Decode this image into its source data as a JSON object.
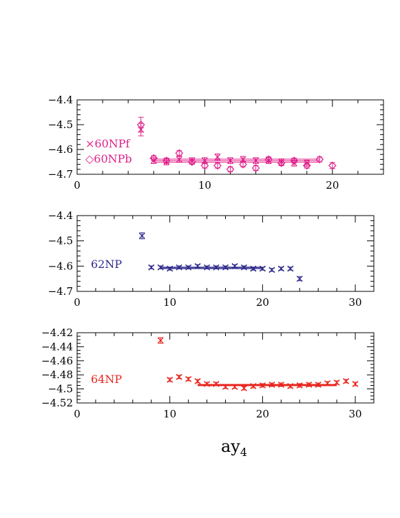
{
  "figure": {
    "xlabel_main": "ay",
    "xlabel_sub": "4"
  },
  "chart_data": [
    {
      "type": "scatter",
      "title": "",
      "xlabel": "",
      "ylabel": "",
      "xlim": [
        0,
        24
      ],
      "ylim": [
        -4.7,
        -4.4
      ],
      "xticks": [
        0,
        10,
        20
      ],
      "yticks": [
        -4.7,
        -4.6,
        -4.5,
        -4.4
      ],
      "ytick_labels": [
        "−4.7",
        "−4.6",
        "−4.5",
        "−4.4"
      ],
      "grid": false,
      "legend_position": "left",
      "series": [
        {
          "name": "60NPf",
          "marker_symbol": "×",
          "marker": "x",
          "color": "#e0208a",
          "x": [
            5,
            6,
            7,
            8,
            9,
            10,
            11,
            12,
            13,
            14,
            15,
            16,
            17,
            18
          ],
          "y": [
            -4.52,
            -4.645,
            -4.65,
            -4.64,
            -4.645,
            -4.645,
            -4.63,
            -4.645,
            -4.64,
            -4.645,
            -4.645,
            -4.65,
            -4.655,
            -4.655
          ],
          "err": [
            0.025,
            0.012,
            0.012,
            0.012,
            0.012,
            0.012,
            0.012,
            0.012,
            0.012,
            0.012,
            0.012,
            0.012,
            0.012,
            0.012
          ]
        },
        {
          "name": "60NPb",
          "marker_symbol": "◇",
          "marker": "diamond",
          "color": "#e0208a",
          "x": [
            5,
            6,
            7,
            8,
            9,
            10,
            11,
            12,
            13,
            14,
            15,
            16,
            17,
            18,
            19,
            20
          ],
          "y": [
            -4.5,
            -4.635,
            -4.645,
            -4.615,
            -4.65,
            -4.665,
            -4.665,
            -4.68,
            -4.66,
            -4.675,
            -4.64,
            -4.655,
            -4.645,
            -4.665,
            -4.64,
            -4.665
          ],
          "err": [
            0.03,
            0.01,
            0.01,
            0.01,
            0.01,
            0.01,
            0.01,
            0.01,
            0.01,
            0.01,
            0.01,
            0.01,
            0.01,
            0.01,
            0.01,
            0.012
          ]
        }
      ],
      "fit_band": {
        "x": [
          6,
          19
        ],
        "center": -4.645,
        "half_width": 0.006,
        "color": "#e0208a"
      }
    },
    {
      "type": "scatter",
      "title": "",
      "xlabel": "",
      "ylabel": "",
      "xlim": [
        0,
        32
      ],
      "ylim": [
        -4.7,
        -4.4
      ],
      "xticks": [
        0,
        10,
        20,
        30
      ],
      "yticks": [
        -4.7,
        -4.6,
        -4.5,
        -4.4
      ],
      "ytick_labels": [
        "−4.7",
        "−4.6",
        "−4.5",
        "−4.4"
      ],
      "grid": false,
      "legend_position": "left",
      "series": [
        {
          "name": "62NP",
          "marker_symbol": "×",
          "marker": "x",
          "color": "#2e2a8c",
          "x": [
            7,
            8,
            9,
            10,
            11,
            12,
            13,
            14,
            15,
            16,
            17,
            18,
            19,
            20,
            21,
            22,
            23,
            24
          ],
          "y": [
            -4.48,
            -4.605,
            -4.605,
            -4.61,
            -4.605,
            -4.605,
            -4.6,
            -4.605,
            -4.605,
            -4.605,
            -4.6,
            -4.605,
            -4.61,
            -4.61,
            -4.615,
            -4.61,
            -4.61,
            -4.65
          ],
          "err": [
            0.012,
            0.006,
            0.006,
            0.006,
            0.006,
            0.006,
            0.006,
            0.006,
            0.006,
            0.006,
            0.006,
            0.006,
            0.006,
            0.006,
            0.006,
            0.006,
            0.006,
            0.008
          ]
        }
      ],
      "fit_band": {
        "x": [
          9,
          20
        ],
        "center": -4.607,
        "half_width": 0.003,
        "color": "#2e2a8c"
      }
    },
    {
      "type": "scatter",
      "title": "",
      "xlabel": "",
      "ylabel": "",
      "xlim": [
        0,
        32
      ],
      "ylim": [
        -4.52,
        -4.42
      ],
      "xticks": [
        0,
        10,
        20,
        30
      ],
      "yticks": [
        -4.52,
        -4.5,
        -4.48,
        -4.46,
        -4.44,
        -4.42
      ],
      "ytick_labels": [
        "−4.52",
        "−4.5",
        "−4.48",
        "−4.46",
        "−4.44",
        "−4.42"
      ],
      "grid": false,
      "legend_position": "left",
      "series": [
        {
          "name": "64NP",
          "marker_symbol": "×",
          "marker": "x",
          "color": "#e8241e",
          "x": [
            9,
            10,
            11,
            12,
            13,
            14,
            15,
            16,
            17,
            18,
            19,
            20,
            21,
            22,
            23,
            24,
            25,
            26,
            27,
            28,
            29,
            30
          ],
          "y": [
            -4.431,
            -4.487,
            -4.483,
            -4.486,
            -4.489,
            -4.493,
            -4.493,
            -4.497,
            -4.497,
            -4.499,
            -4.496,
            -4.495,
            -4.494,
            -4.494,
            -4.496,
            -4.495,
            -4.494,
            -4.494,
            -4.492,
            -4.491,
            -4.489,
            -4.493
          ],
          "err": [
            0.004,
            0.0025,
            0.0025,
            0.0025,
            0.0025,
            0.0025,
            0.0025,
            0.0025,
            0.0025,
            0.0025,
            0.0025,
            0.0025,
            0.0025,
            0.0025,
            0.0025,
            0.0025,
            0.0025,
            0.0025,
            0.0025,
            0.0025,
            0.0025,
            0.0025
          ]
        }
      ],
      "fit_band": {
        "x": [
          13,
          28
        ],
        "center": -4.4945,
        "half_width": 0.001,
        "color": "#e8241e"
      }
    }
  ]
}
